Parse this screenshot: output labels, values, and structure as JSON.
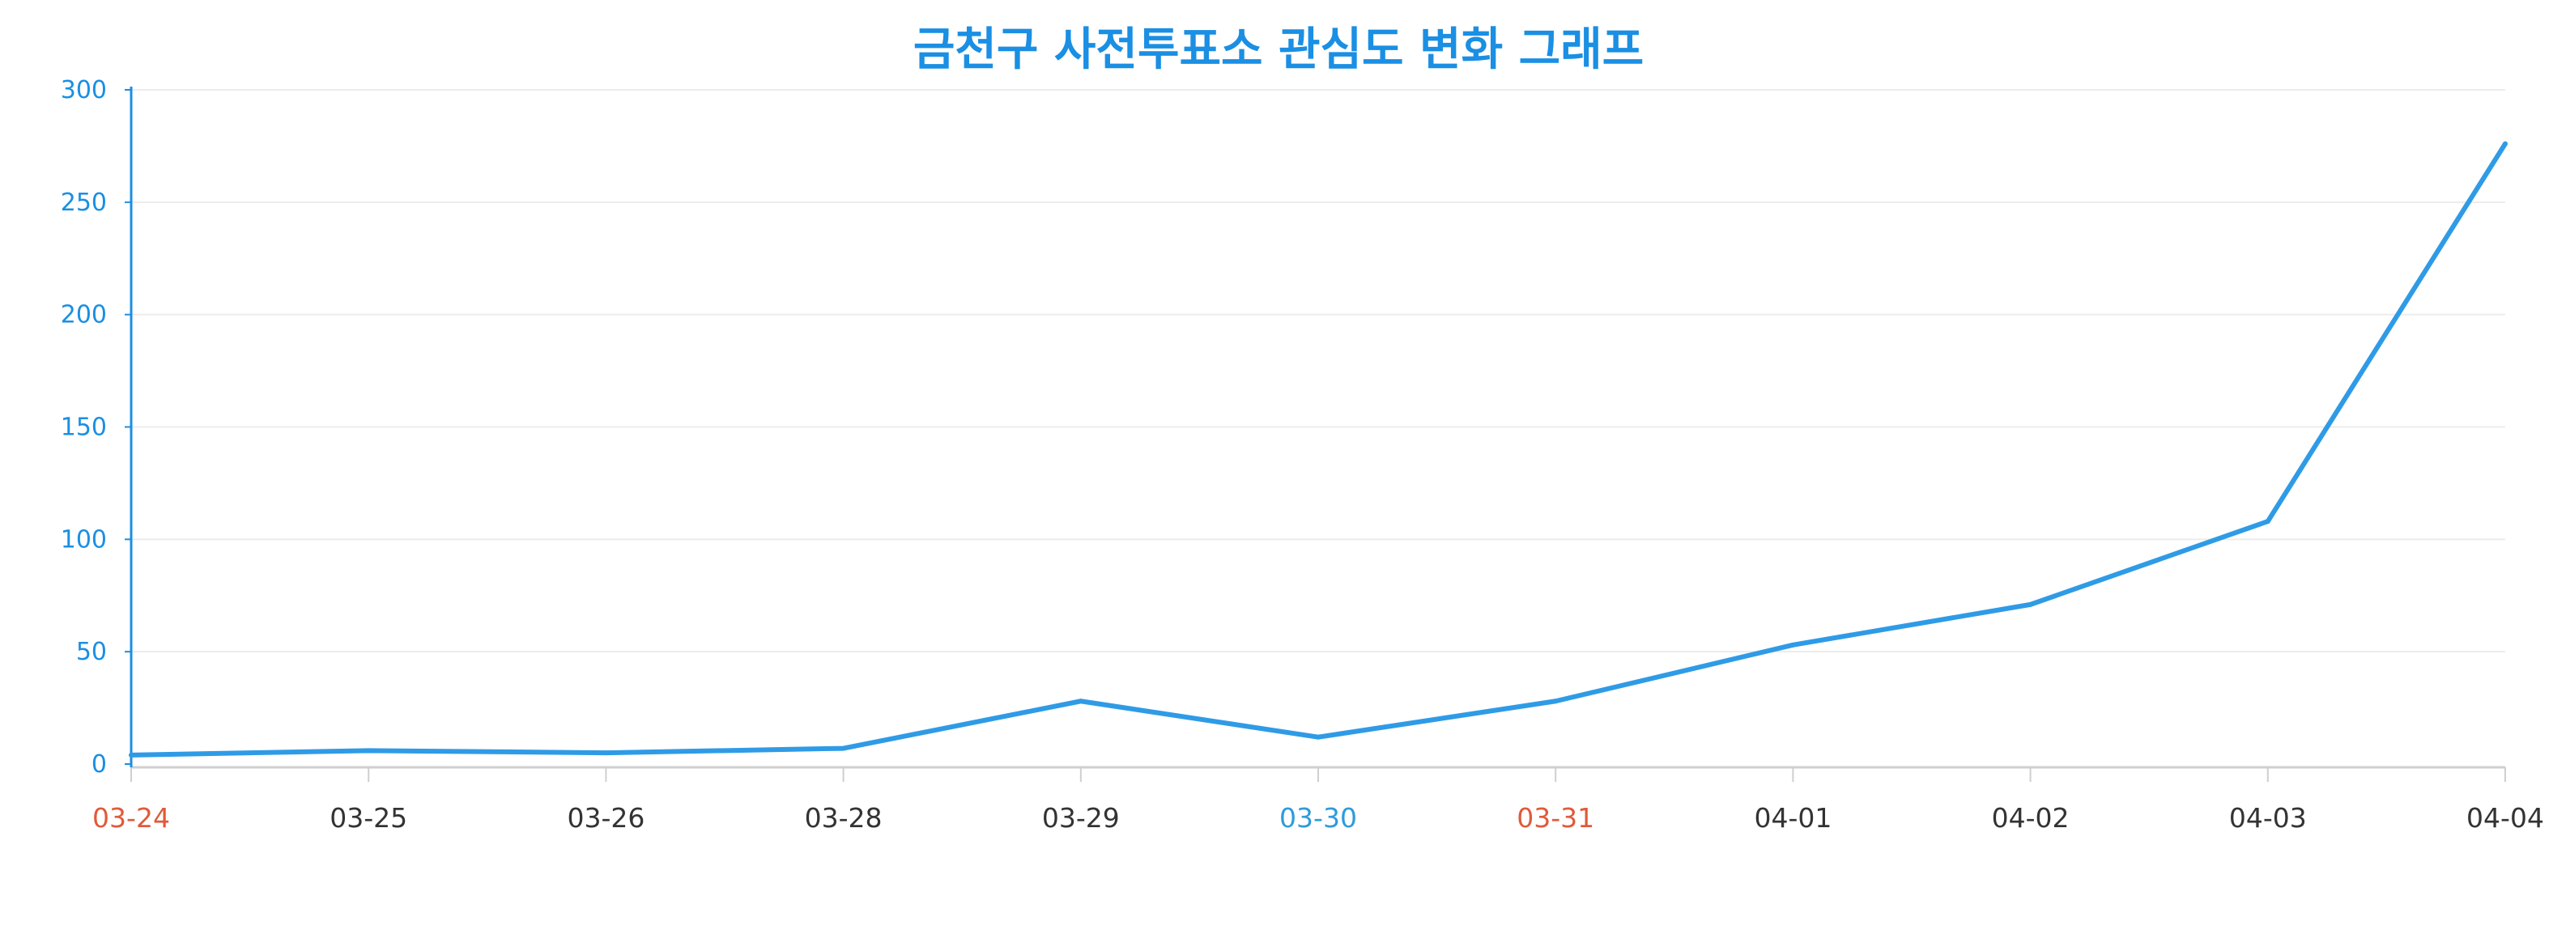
{
  "chart_data": {
    "type": "line",
    "title": "금천구 사전투표소 관심도 변화 그래프",
    "xlabel": "",
    "ylabel": "",
    "categories": [
      "03-24",
      "03-25",
      "03-26",
      "03-28",
      "03-29",
      "03-30",
      "03-31",
      "04-01",
      "04-02",
      "04-03",
      "04-04"
    ],
    "series": [
      {
        "values": [
          4,
          6,
          5,
          7,
          28,
          12,
          28,
          53,
          71,
          108,
          276
        ]
      }
    ],
    "ylim": [
      0,
      300
    ],
    "yticks": [
      "0",
      "50",
      "100",
      "150",
      "200",
      "250",
      "300"
    ],
    "grid": true,
    "legend": "none"
  },
  "colors": {
    "title": "#1a8fe3",
    "line": "#2f9be6",
    "y_axis": "#1a8fe3",
    "y_tick_label": "#1a8fe3",
    "x_axis": "#cfcfcf",
    "grid": "#ececec",
    "x_tick_default": "#333333",
    "x_tick_saturday": "#2c9cdb",
    "x_tick_sunday": "#e05a3a"
  },
  "x_tick_colors": [
    "sunday",
    "default",
    "default",
    "default",
    "default",
    "saturday",
    "sunday",
    "default",
    "default",
    "default",
    "default"
  ]
}
